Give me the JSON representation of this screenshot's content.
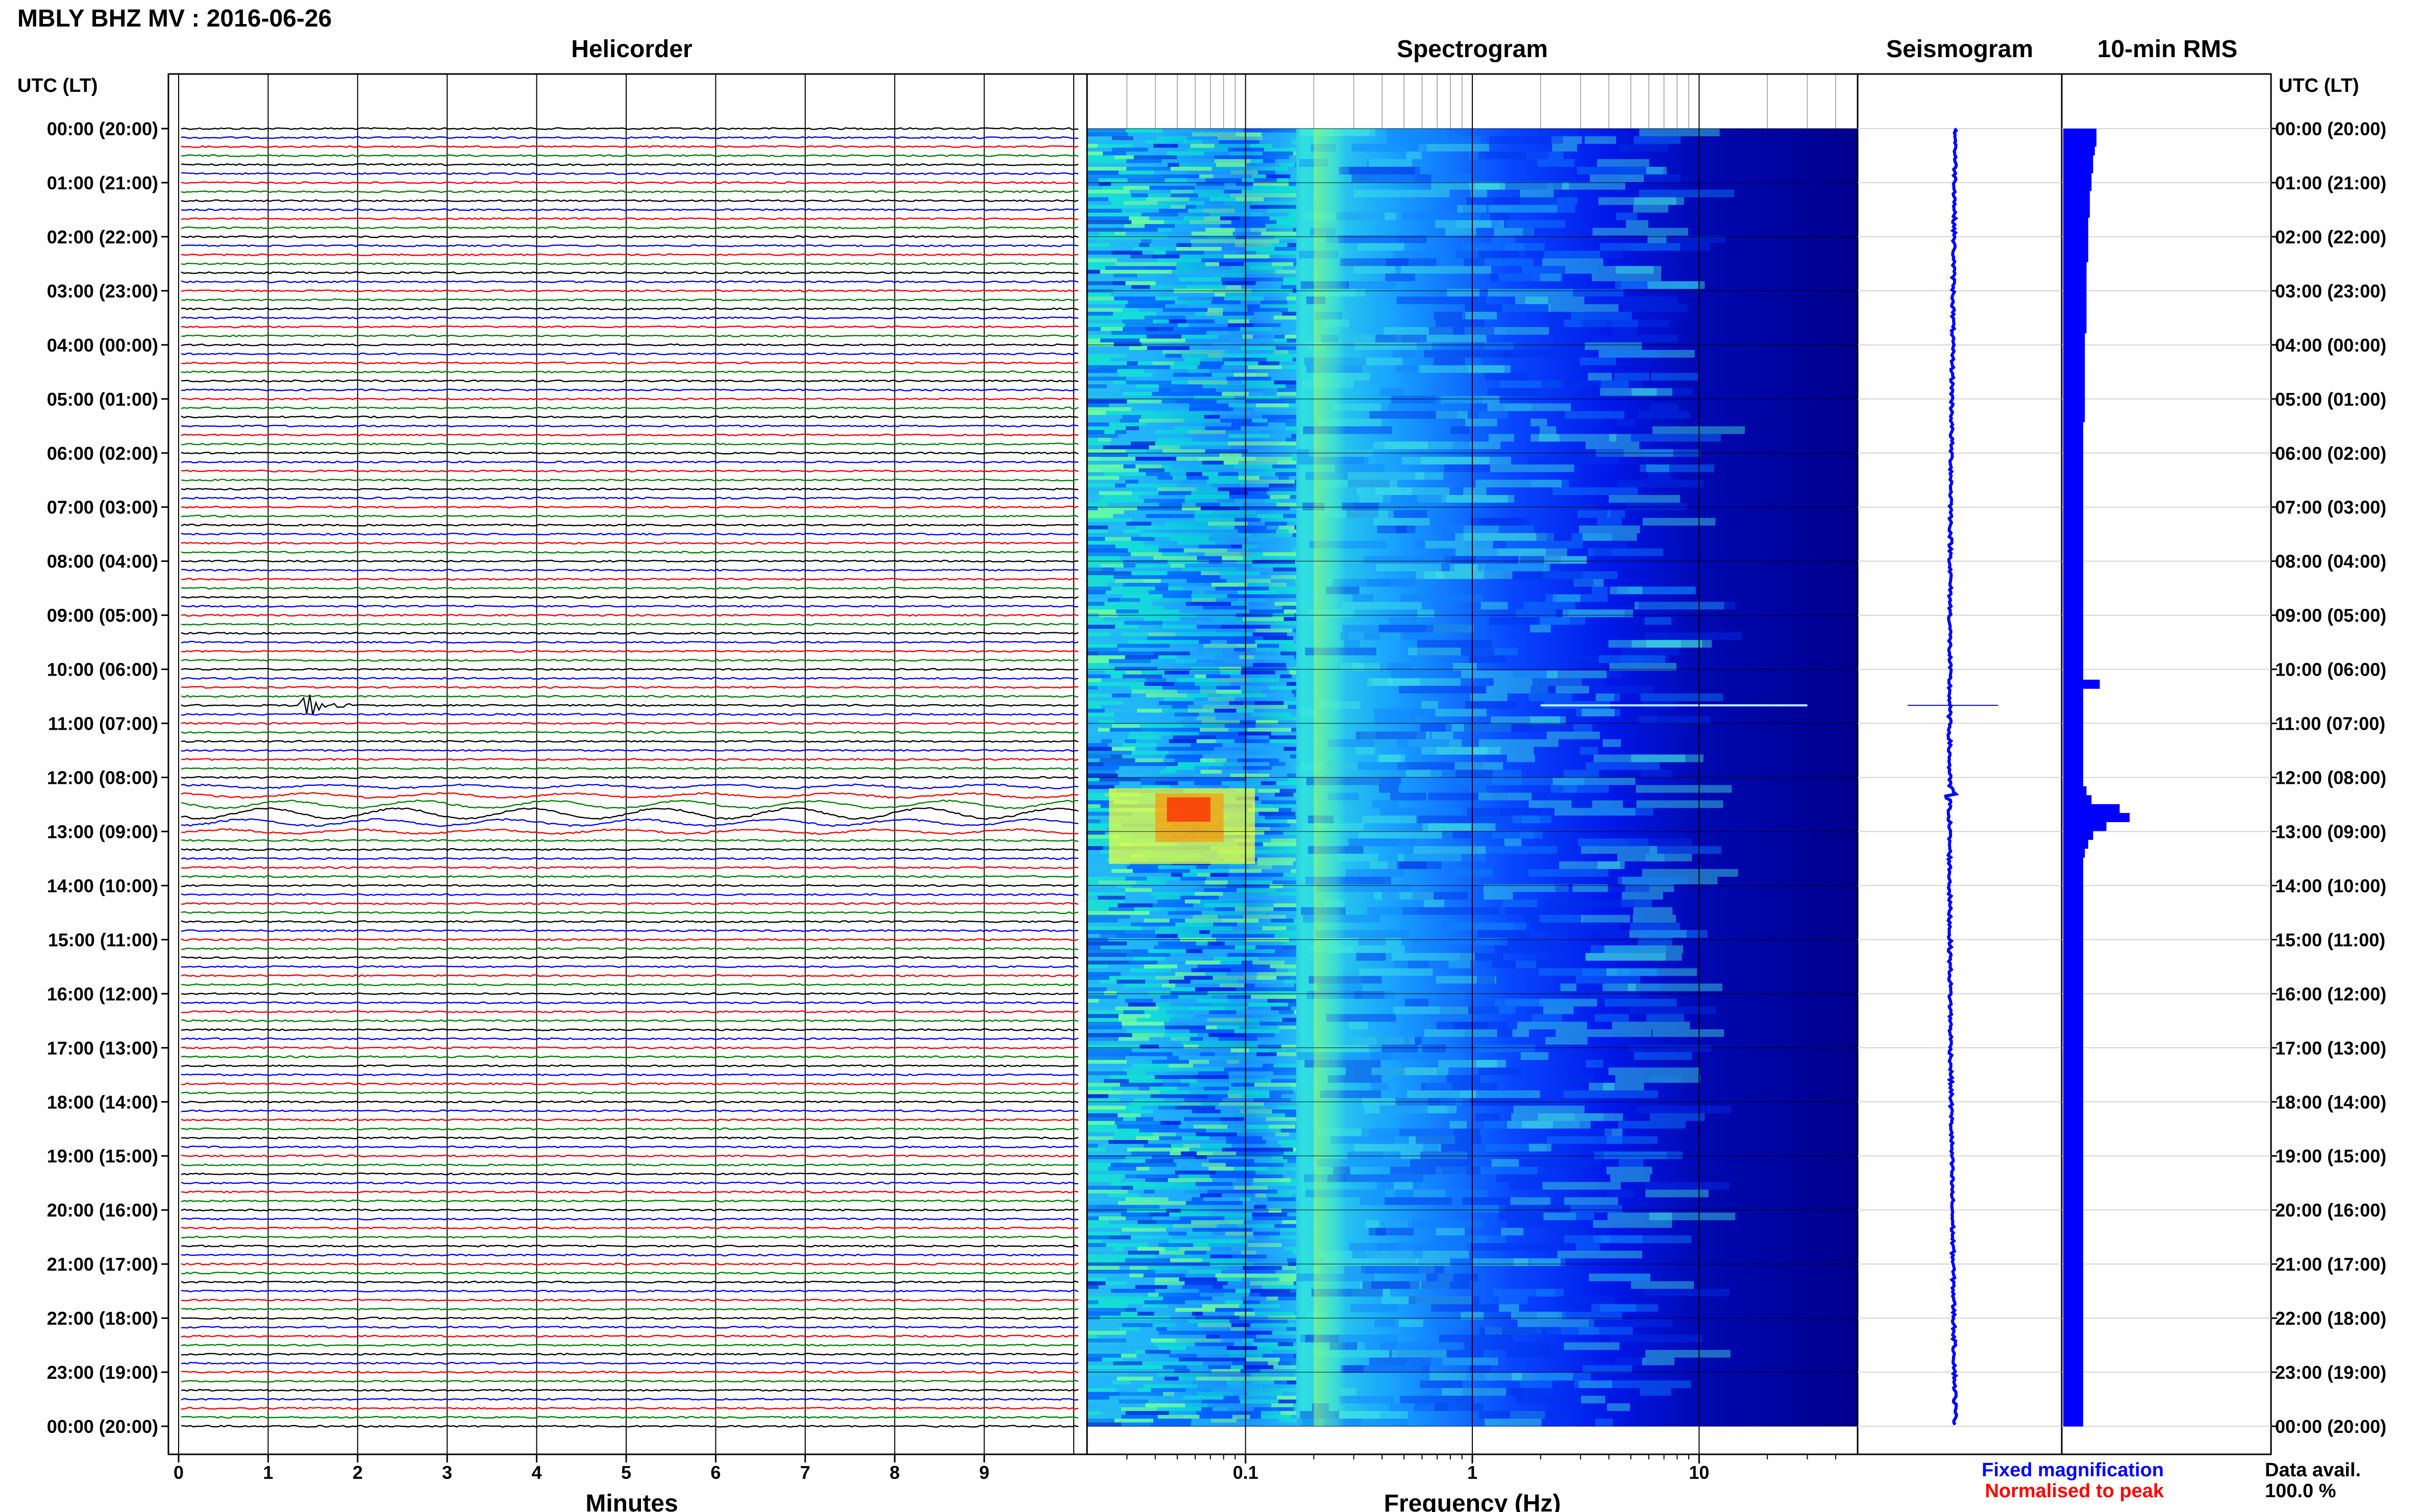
{
  "figure_title": "MBLY BHZ MV : 2016-06-26",
  "panels": {
    "helicorder": "Helicorder",
    "spectrogram": "Spectrogram",
    "seismogram": "Seismogram",
    "rms": "10-min RMS"
  },
  "time_axis_label_left": "UTC (LT)",
  "time_axis_label_right": "UTC (LT)",
  "time_ticks": [
    "00:00 (20:00)",
    "01:00 (21:00)",
    "02:00 (22:00)",
    "03:00 (23:00)",
    "04:00 (00:00)",
    "05:00 (01:00)",
    "06:00 (02:00)",
    "07:00 (03:00)",
    "08:00 (04:00)",
    "09:00 (05:00)",
    "10:00 (06:00)",
    "11:00 (07:00)",
    "12:00 (08:00)",
    "13:00 (09:00)",
    "14:00 (10:00)",
    "15:00 (11:00)",
    "16:00 (12:00)",
    "17:00 (13:00)",
    "18:00 (14:00)",
    "19:00 (15:00)",
    "20:00 (16:00)",
    "21:00 (17:00)",
    "22:00 (18:00)",
    "23:00 (19:00)",
    "00:00 (20:00)"
  ],
  "minutes_ticks": [
    "0",
    "1",
    "2",
    "3",
    "4",
    "5",
    "6",
    "7",
    "8",
    "9"
  ],
  "minutes_label": "Minutes",
  "frequency_ticks": [
    "0.1",
    "1",
    "10"
  ],
  "frequency_label": "Frequency (Hz)",
  "legend": {
    "fixed": "Fixed magnification",
    "normalised": "Normalised to peak",
    "fixed_color": "#0000ff",
    "normalised_color": "#ff0000"
  },
  "data_avail_label": "Data avail.",
  "data_avail_value": "100.0 %",
  "chart_data": {
    "type": "heatmap",
    "helicorder": {
      "x_range_minutes": [
        0,
        10
      ],
      "hours": 24,
      "lines_per_hour": 6,
      "line_colors": [
        "#000000",
        "#0000ff",
        "#ff0000",
        "#008000"
      ],
      "events": [
        {
          "time_utc": "10:40",
          "minute": 1.45,
          "color": "#008000"
        },
        {
          "time_utc": "12:10",
          "minute": 0,
          "color": "#0000ff"
        }
      ]
    },
    "spectrogram": {
      "x_scale": "log",
      "x_range_hz": [
        0.02,
        50
      ],
      "colormap": [
        "#00007a",
        "#0000ff",
        "#0070ff",
        "#00d0ff",
        "#60ffb0",
        "#e0ff40",
        "#ffb000",
        "#ff2000"
      ]
    },
    "rms_10min": {
      "scale_max": 40,
      "values": [
        20,
        20,
        19,
        18,
        18,
        17,
        17,
        16,
        16,
        16,
        15,
        15,
        15,
        15,
        15,
        14,
        14,
        14,
        14,
        14,
        14,
        14,
        14,
        13,
        13,
        13,
        13,
        13,
        13,
        13,
        13,
        13,
        13,
        12,
        12,
        12,
        12,
        12,
        12,
        12,
        12,
        12,
        12,
        12,
        12,
        12,
        12,
        12,
        12,
        12,
        12,
        12,
        12,
        12,
        12,
        12,
        12,
        12,
        12,
        12,
        12,
        12,
        22,
        12,
        12,
        12,
        12,
        12,
        12,
        12,
        12,
        12,
        12,
        12,
        14,
        17,
        34,
        40,
        26,
        18,
        15,
        13,
        12,
        12,
        12,
        12,
        12,
        12,
        12,
        12,
        12,
        12,
        12,
        12,
        12,
        12,
        12,
        12,
        12,
        12,
        12,
        12,
        12,
        12,
        12,
        12,
        12,
        12,
        12,
        12,
        12,
        12,
        12,
        12,
        12,
        12,
        12,
        12,
        12,
        12,
        12,
        12,
        12,
        12,
        12,
        12,
        12,
        12,
        12,
        12,
        12,
        12,
        12,
        12,
        12,
        12,
        12,
        12,
        12,
        12,
        12,
        12,
        12,
        12,
        12,
        12
      ]
    }
  }
}
